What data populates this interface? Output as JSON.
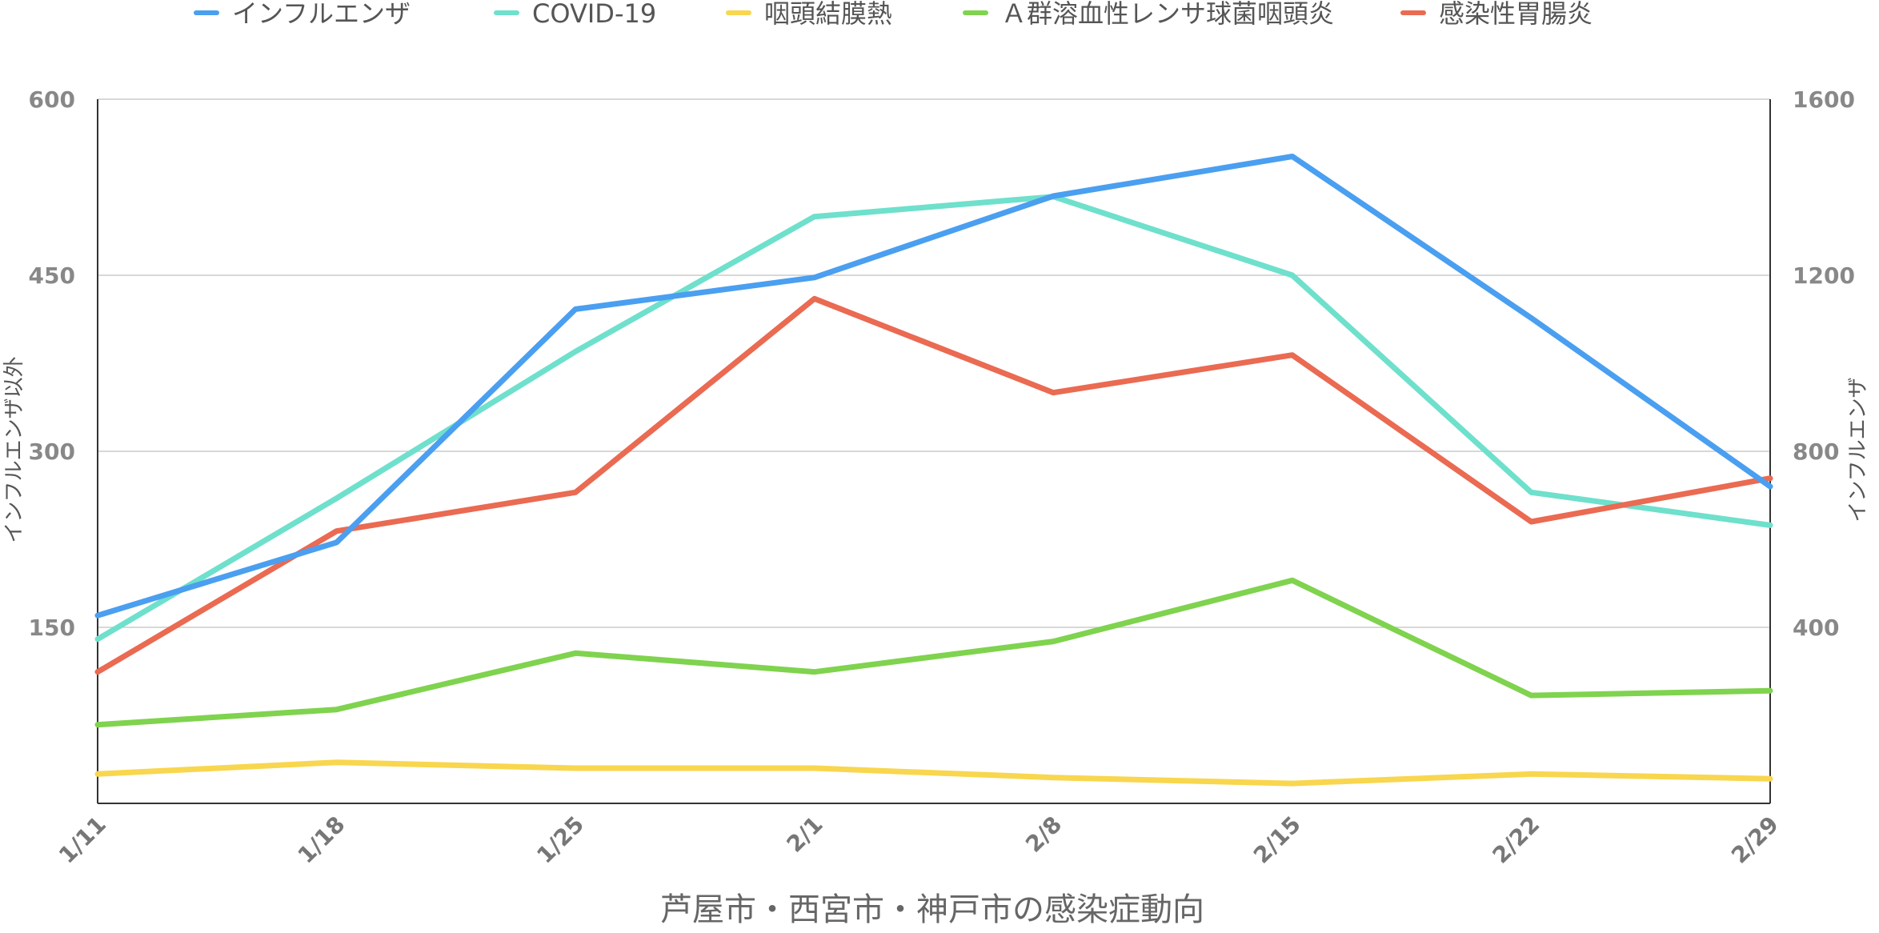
{
  "chart_data": {
    "type": "line",
    "title": "芦屋市・西宮市・神戸市の感染症動向",
    "categories": [
      "1/11",
      "1/18",
      "1/25",
      "2/1",
      "2/8",
      "2/15",
      "2/22",
      "2/29"
    ],
    "y_left": {
      "label": "インフルエンザ以外",
      "ylim": [
        0,
        600
      ],
      "ticks": [
        150,
        300,
        450,
        600
      ],
      "tick_labels": [
        "150",
        "300",
        "450",
        "600"
      ]
    },
    "y_right": {
      "label": "インフルエンザ",
      "ylim": [
        0,
        1600
      ],
      "ticks": [
        400,
        800,
        1200,
        1600
      ],
      "tick_labels": [
        "400",
        "800",
        "1200",
        "1600"
      ]
    },
    "grid": true,
    "legend_position": "top",
    "series": [
      {
        "name": "インフルエンザ",
        "axis": "right",
        "color": "#4a9ff0",
        "values": [
          427,
          593,
          1123,
          1195,
          1380,
          1470,
          1103,
          720
        ]
      },
      {
        "name": "COVID-19",
        "axis": "left",
        "color": "#6ee0cc",
        "values": [
          140,
          260,
          385,
          500,
          517,
          450,
          265,
          237
        ]
      },
      {
        "name": "咽頭結膜熱",
        "axis": "left",
        "color": "#f8d64e",
        "values": [
          25,
          35,
          30,
          30,
          22,
          17,
          25,
          21
        ]
      },
      {
        "name": "Ａ群溶血性レンサ球菌咽頭炎",
        "axis": "left",
        "color": "#7fd34e",
        "values": [
          67,
          80,
          128,
          112,
          138,
          190,
          92,
          96
        ]
      },
      {
        "name": "感染性胃腸炎",
        "axis": "left",
        "color": "#ea6a52",
        "values": [
          112,
          232,
          265,
          430,
          350,
          382,
          240,
          277
        ]
      }
    ]
  }
}
